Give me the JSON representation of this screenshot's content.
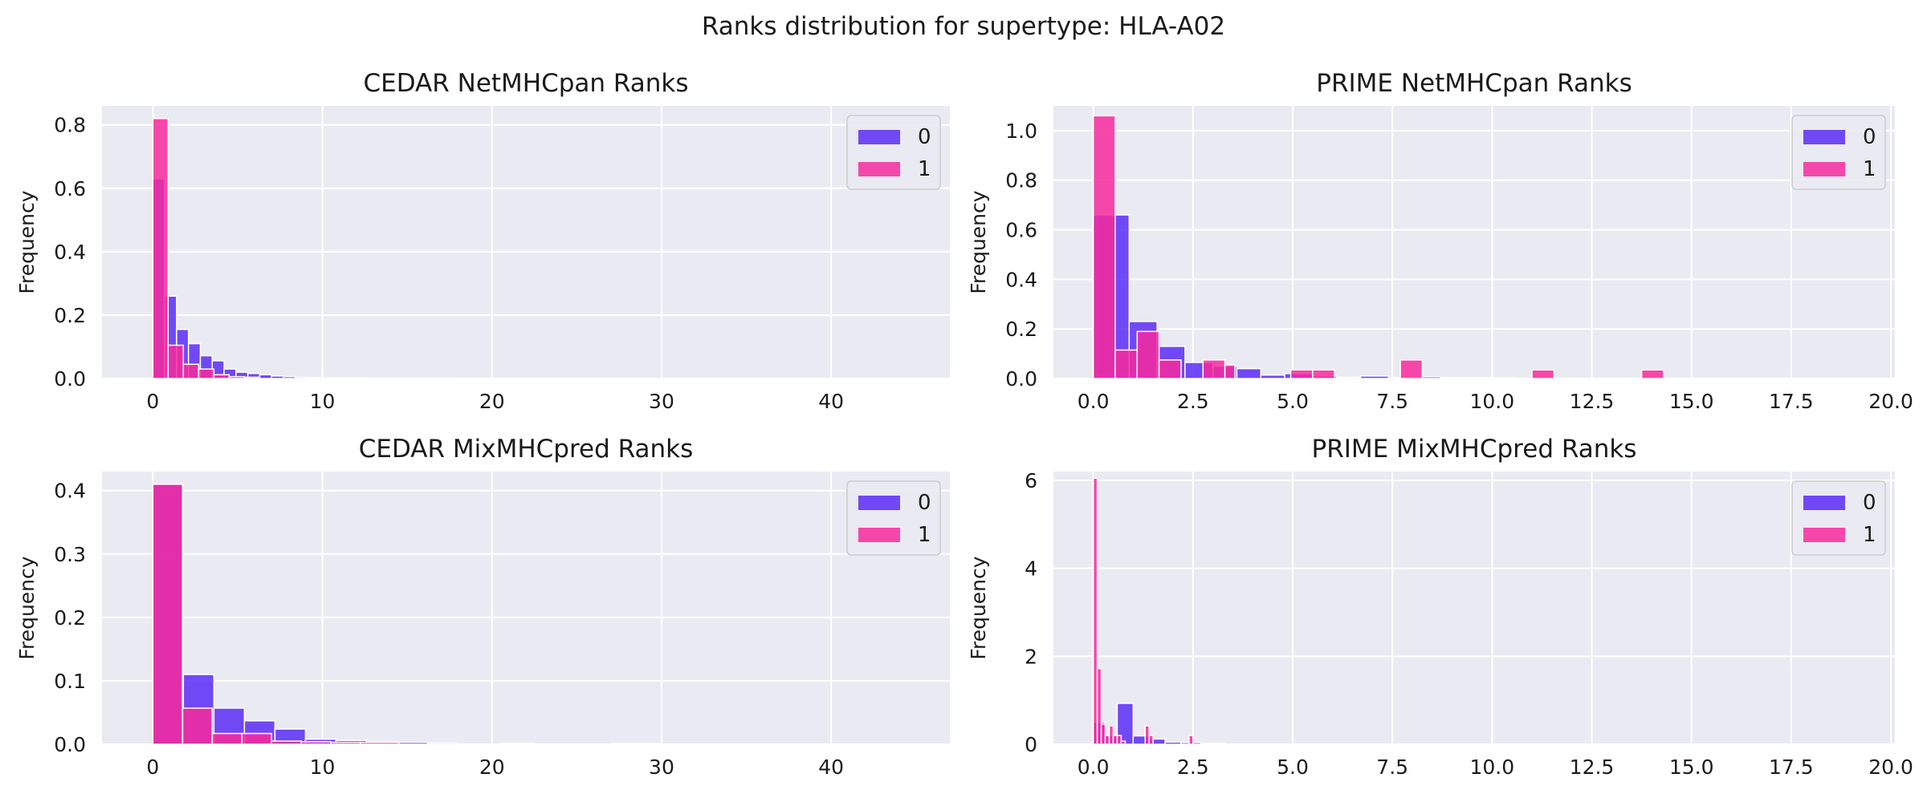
{
  "figure": {
    "title": "Ranks distribution for supertype: HLA-A02"
  },
  "colors": {
    "series0": "#5b2cf6",
    "series1": "#f72a9c",
    "background": "#eaeaf2",
    "grid": "#ffffff"
  },
  "chart_data": [
    {
      "type": "bar",
      "title": "CEDAR NetMHCpan Ranks",
      "xlabel": "",
      "ylabel": "Frequency",
      "xlim": [
        -3,
        47
      ],
      "ylim": [
        0,
        0.86
      ],
      "xticks": [
        0,
        10,
        20,
        30,
        40
      ],
      "xtick_labels": [
        "0",
        "10",
        "20",
        "30",
        "40"
      ],
      "yticks": [
        0,
        0.2,
        0.4,
        0.6,
        0.8
      ],
      "ytick_labels": [
        "0.0",
        "0.2",
        "0.4",
        "0.6",
        "0.8"
      ],
      "grid": true,
      "legend": {
        "entries": [
          "0",
          "1"
        ],
        "position": "top-right"
      },
      "series": [
        {
          "name": "0",
          "color": "#5b2cf6",
          "bins": [
            [
              0.0,
              0.7,
              0.63
            ],
            [
              0.7,
              1.4,
              0.26
            ],
            [
              1.4,
              2.1,
              0.155
            ],
            [
              2.1,
              2.8,
              0.11
            ],
            [
              2.8,
              3.5,
              0.072
            ],
            [
              3.5,
              4.2,
              0.056
            ],
            [
              4.2,
              4.9,
              0.03
            ],
            [
              4.9,
              5.6,
              0.02
            ],
            [
              5.6,
              6.3,
              0.016
            ],
            [
              6.3,
              7.0,
              0.012
            ],
            [
              7.0,
              7.7,
              0.008
            ],
            [
              7.7,
              8.4,
              0.006
            ],
            [
              8.4,
              9.1,
              0.004
            ],
            [
              9.1,
              9.8,
              0.003
            ],
            [
              9.8,
              12.6,
              0.002
            ],
            [
              12.6,
              17.5,
              0.001
            ]
          ]
        },
        {
          "name": "1",
          "color": "#f72a9c",
          "bins": [
            [
              0.0,
              0.9,
              0.82
            ],
            [
              0.9,
              1.8,
              0.105
            ],
            [
              1.8,
              2.7,
              0.045
            ],
            [
              2.7,
              3.6,
              0.03
            ],
            [
              3.6,
              4.5,
              0.012
            ],
            [
              4.5,
              5.4,
              0.006
            ],
            [
              5.4,
              6.3,
              0.004
            ]
          ]
        }
      ]
    },
    {
      "type": "bar",
      "title": "PRIME NetMHCpan Ranks",
      "xlabel": "",
      "ylabel": "Frequency",
      "xlim": [
        -1.0,
        20.1
      ],
      "ylim": [
        0,
        1.1
      ],
      "xticks": [
        0,
        2.5,
        5,
        7.5,
        10,
        12.5,
        15,
        17.5,
        20
      ],
      "xtick_labels": [
        "0.0",
        "2.5",
        "5.0",
        "7.5",
        "10.0",
        "12.5",
        "15.0",
        "17.5",
        "20.0"
      ],
      "yticks": [
        0,
        0.2,
        0.4,
        0.6,
        0.8,
        1.0
      ],
      "ytick_labels": [
        "0.0",
        "0.2",
        "0.4",
        "0.6",
        "0.8",
        "1.0"
      ],
      "grid": true,
      "legend": {
        "entries": [
          "0",
          "1"
        ],
        "position": "top-right"
      },
      "series": [
        {
          "name": "0",
          "color": "#5b2cf6",
          "bins": [
            [
              0.0,
              0.55,
              0.66
            ],
            [
              0.55,
              0.9,
              0.66
            ],
            [
              0.9,
              1.6,
              0.23
            ],
            [
              1.6,
              2.3,
              0.13
            ],
            [
              2.3,
              3.0,
              0.065
            ],
            [
              3.0,
              3.6,
              0.05
            ],
            [
              3.6,
              4.2,
              0.04
            ],
            [
              4.2,
              4.8,
              0.014
            ],
            [
              4.8,
              5.5,
              0.02
            ],
            [
              5.5,
              6.1,
              0.01
            ],
            [
              6.1,
              6.7,
              0.005
            ],
            [
              6.7,
              7.4,
              0.01
            ],
            [
              7.4,
              8.0,
              0.004
            ],
            [
              8.0,
              8.7,
              0.007
            ],
            [
              8.7,
              9.3,
              0.004
            ],
            [
              9.3,
              10.0,
              0.004
            ],
            [
              10.0,
              10.6,
              0.003
            ]
          ]
        },
        {
          "name": "1",
          "color": "#f72a9c",
          "bins": [
            [
              0.0,
              0.55,
              1.06
            ],
            [
              0.55,
              1.1,
              0.115
            ],
            [
              1.1,
              1.65,
              0.19
            ],
            [
              1.65,
              2.2,
              0.075
            ],
            [
              2.75,
              3.3,
              0.075
            ],
            [
              3.3,
              3.55,
              0.055
            ],
            [
              4.95,
              5.5,
              0.035
            ],
            [
              5.5,
              6.05,
              0.035
            ],
            [
              7.7,
              8.25,
              0.075
            ],
            [
              11.0,
              11.55,
              0.035
            ],
            [
              13.75,
              14.3,
              0.035
            ]
          ]
        }
      ]
    },
    {
      "type": "bar",
      "title": "CEDAR MixMHCpred Ranks",
      "xlabel": "",
      "ylabel": "Frequency",
      "xlim": [
        -3,
        47
      ],
      "ylim": [
        0,
        0.43
      ],
      "xticks": [
        0,
        10,
        20,
        30,
        40
      ],
      "xtick_labels": [
        "0",
        "10",
        "20",
        "30",
        "40"
      ],
      "yticks": [
        0,
        0.1,
        0.2,
        0.3,
        0.4
      ],
      "ytick_labels": [
        "0.0",
        "0.1",
        "0.2",
        "0.3",
        "0.4"
      ],
      "grid": true,
      "legend": {
        "entries": [
          "0",
          "1"
        ],
        "position": "top-right"
      },
      "series": [
        {
          "name": "0",
          "color": "#5b2cf6",
          "bins": [
            [
              0.0,
              1.8,
              0.41
            ],
            [
              1.8,
              3.6,
              0.11
            ],
            [
              3.6,
              5.4,
              0.057
            ],
            [
              5.4,
              7.2,
              0.037
            ],
            [
              7.2,
              9.0,
              0.024
            ],
            [
              9.0,
              10.8,
              0.008
            ],
            [
              10.8,
              12.6,
              0.006
            ],
            [
              12.6,
              14.4,
              0.004
            ],
            [
              14.4,
              16.2,
              0.003
            ],
            [
              16.2,
              18.0,
              0.002
            ],
            [
              20.5,
              22.5,
              0.0015
            ],
            [
              27.0,
              30.0,
              0.001
            ]
          ]
        },
        {
          "name": "1",
          "color": "#f72a9c",
          "bins": [
            [
              0.0,
              1.75,
              0.41
            ],
            [
              1.75,
              3.5,
              0.057
            ],
            [
              3.5,
              5.25,
              0.017
            ],
            [
              5.25,
              7.0,
              0.017
            ],
            [
              7.0,
              8.75,
              0.005
            ],
            [
              8.75,
              10.5,
              0.004
            ],
            [
              10.5,
              12.25,
              0.003
            ],
            [
              12.25,
              14.5,
              0.003
            ]
          ]
        }
      ]
    },
    {
      "type": "bar",
      "title": "PRIME MixMHCpred Ranks",
      "xlabel": "",
      "ylabel": "Frequency",
      "xlim": [
        -1.0,
        20.1
      ],
      "ylim": [
        0,
        6.2
      ],
      "xticks": [
        0,
        2.5,
        5,
        7.5,
        10,
        12.5,
        15,
        17.5,
        20
      ],
      "xtick_labels": [
        "0.0",
        "2.5",
        "5.0",
        "7.5",
        "10.0",
        "12.5",
        "15.0",
        "17.5",
        "20.0"
      ],
      "yticks": [
        0,
        2,
        4,
        6
      ],
      "ytick_labels": [
        "0",
        "2",
        "4",
        "6"
      ],
      "grid": true,
      "legend": {
        "entries": [
          "0",
          "1"
        ],
        "position": "top-right"
      },
      "series": [
        {
          "name": "0",
          "color": "#5b2cf6",
          "bins": [
            [
              0.0,
              0.3,
              0.5
            ],
            [
              0.3,
              0.6,
              0.2
            ],
            [
              0.6,
              1.0,
              0.93
            ],
            [
              1.0,
              1.4,
              0.19
            ],
            [
              1.4,
              1.8,
              0.12
            ],
            [
              1.8,
              2.2,
              0.05
            ],
            [
              2.2,
              2.7,
              0.04
            ],
            [
              2.7,
              3.3,
              0.02
            ]
          ]
        },
        {
          "name": "1",
          "color": "#f72a9c",
          "bins": [
            [
              0.0,
              0.1,
              6.05
            ],
            [
              0.1,
              0.2,
              1.72
            ],
            [
              0.2,
              0.3,
              0.46
            ],
            [
              0.3,
              0.4,
              0.2
            ],
            [
              0.4,
              0.5,
              0.42
            ],
            [
              0.5,
              0.6,
              0.2
            ],
            [
              0.6,
              0.7,
              0.2
            ],
            [
              0.7,
              0.8,
              0.07
            ],
            [
              1.3,
              1.4,
              0.42
            ],
            [
              1.4,
              1.5,
              0.2
            ],
            [
              2.4,
              2.5,
              0.2
            ]
          ]
        }
      ]
    }
  ]
}
